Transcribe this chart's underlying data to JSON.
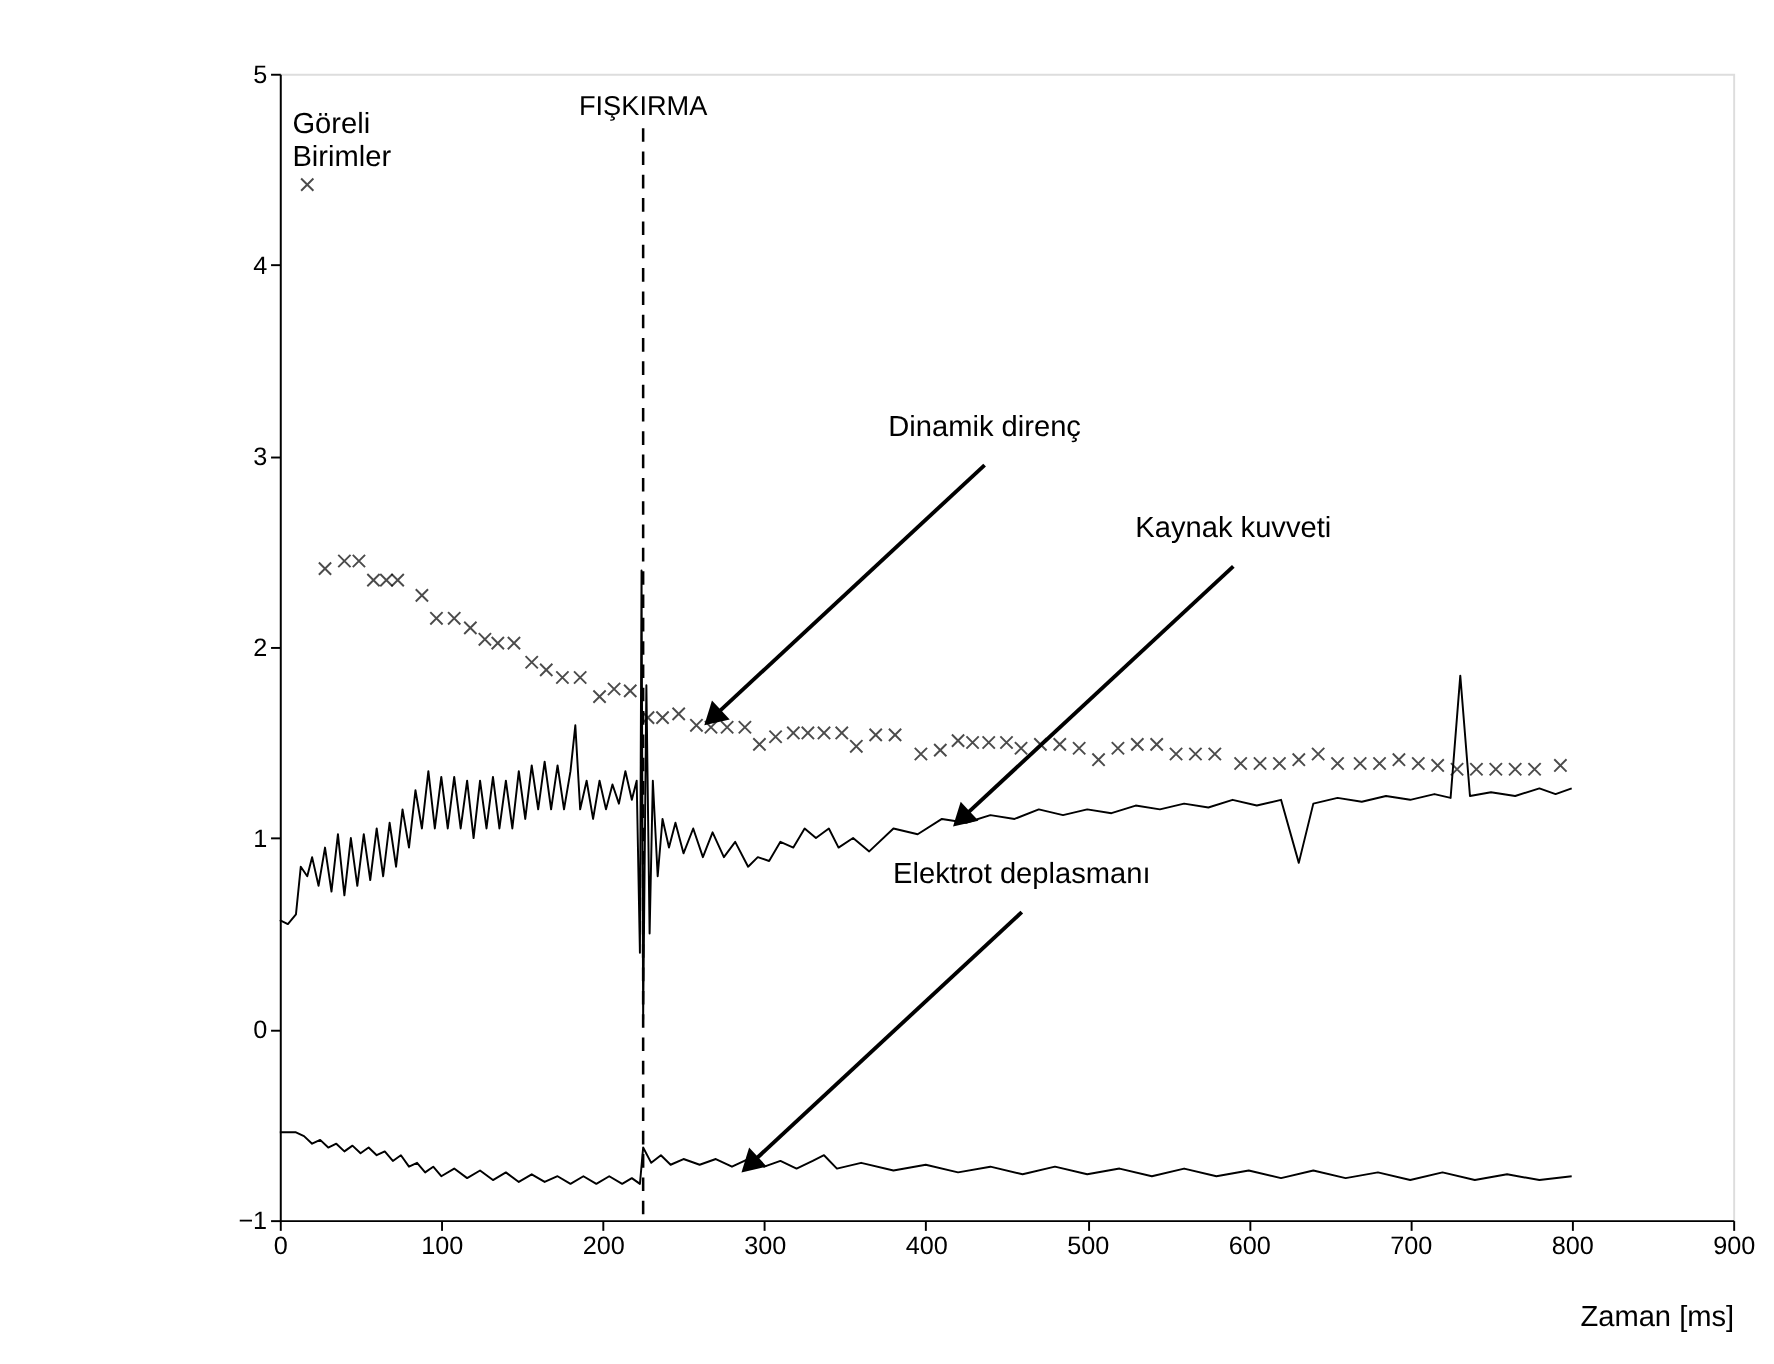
{
  "chart_data": {
    "type": "line",
    "xlabel": "Zaman [ms]",
    "ylabel": "Göreli Birimler",
    "xlim": [
      0,
      900
    ],
    "xticks": [
      0,
      100,
      200,
      300,
      400,
      500,
      600,
      700,
      800,
      900
    ],
    "ylim": [
      -1,
      5
    ],
    "yticks": [
      -1,
      0,
      1,
      2,
      3,
      4,
      5
    ],
    "grid": false,
    "ref_lines": [
      {
        "axis": "x",
        "value": 225,
        "label": "FIŞKIRMA",
        "line_style": "dashed",
        "color": "#000000"
      }
    ],
    "annotations": [
      {
        "text": "Dinamik direnç",
        "x": 268,
        "y": 1.63
      },
      {
        "text": "Kaynak kuvveti",
        "x": 422,
        "y": 1.1
      },
      {
        "text": "Elektrot deplasmanı",
        "x": 291,
        "y": -0.71
      }
    ],
    "series": [
      {
        "type": "scatter",
        "marker": "cross",
        "color": "#000000",
        "x": [
          17,
          28,
          40,
          49,
          58,
          66,
          73,
          88,
          97,
          108,
          118,
          127,
          135,
          145,
          156,
          165,
          175,
          186,
          198,
          207,
          217,
          228,
          237,
          247,
          258,
          267,
          277,
          288,
          297,
          307,
          318,
          327,
          337,
          348,
          357,
          369,
          381,
          397,
          409,
          420,
          429,
          439,
          450,
          459,
          471,
          483,
          495,
          507,
          519,
          531,
          543,
          555,
          567,
          579,
          595,
          607,
          619,
          631,
          643,
          655,
          669,
          681,
          693,
          705,
          717,
          729,
          741,
          753,
          765,
          777,
          793
        ],
        "values": [
          4.42,
          2.41,
          2.45,
          2.45,
          2.35,
          2.35,
          2.35,
          2.27,
          2.15,
          2.15,
          2.1,
          2.04,
          2.02,
          2.02,
          1.92,
          1.88,
          1.84,
          1.84,
          1.74,
          1.78,
          1.77,
          1.63,
          1.63,
          1.65,
          1.59,
          1.58,
          1.58,
          1.58,
          1.49,
          1.53,
          1.55,
          1.55,
          1.55,
          1.55,
          1.48,
          1.54,
          1.54,
          1.44,
          1.46,
          1.51,
          1.5,
          1.5,
          1.5,
          1.47,
          1.49,
          1.49,
          1.47,
          1.41,
          1.47,
          1.49,
          1.49,
          1.44,
          1.44,
          1.44,
          1.39,
          1.39,
          1.39,
          1.41,
          1.44,
          1.39,
          1.39,
          1.39,
          1.41,
          1.39,
          1.38,
          1.36,
          1.36,
          1.36,
          1.36,
          1.36,
          1.38
        ]
      },
      {
        "marker": "none",
        "line_style": "solid",
        "color": "#000000",
        "x": [
          0,
          5,
          10,
          13,
          17,
          20,
          24,
          28,
          32,
          36,
          40,
          44,
          48,
          52,
          56,
          60,
          64,
          68,
          72,
          76,
          80,
          84,
          88,
          92,
          96,
          100,
          104,
          108,
          112,
          116,
          120,
          124,
          128,
          132,
          136,
          140,
          144,
          148,
          152,
          156,
          160,
          164,
          168,
          172,
          176,
          180,
          183,
          186,
          190,
          194,
          198,
          202,
          206,
          210,
          214,
          218,
          221,
          223,
          224,
          225,
          227,
          229,
          231,
          234,
          237,
          241,
          245,
          250,
          256,
          262,
          268,
          275,
          282,
          290,
          296,
          303,
          310,
          318,
          325,
          332,
          340,
          346,
          355,
          365,
          380,
          395,
          410,
          425,
          440,
          455,
          470,
          485,
          500,
          515,
          530,
          545,
          560,
          575,
          590,
          605,
          620,
          631,
          640,
          655,
          670,
          685,
          700,
          715,
          725,
          731,
          737,
          750,
          765,
          780,
          790,
          800
        ],
        "values": [
          0.57,
          0.55,
          0.6,
          0.85,
          0.8,
          0.9,
          0.75,
          0.95,
          0.72,
          1.02,
          0.7,
          1.0,
          0.75,
          1.02,
          0.78,
          1.05,
          0.8,
          1.08,
          0.85,
          1.15,
          0.95,
          1.25,
          1.05,
          1.35,
          1.05,
          1.32,
          1.05,
          1.32,
          1.05,
          1.3,
          1.0,
          1.3,
          1.05,
          1.32,
          1.05,
          1.3,
          1.05,
          1.35,
          1.1,
          1.38,
          1.15,
          1.4,
          1.15,
          1.38,
          1.15,
          1.35,
          1.59,
          1.15,
          1.3,
          1.1,
          1.3,
          1.15,
          1.28,
          1.18,
          1.35,
          1.2,
          1.3,
          0.4,
          2.4,
          0.05,
          1.8,
          0.5,
          1.3,
          0.8,
          1.1,
          0.95,
          1.08,
          0.92,
          1.05,
          0.9,
          1.03,
          0.9,
          0.98,
          0.85,
          0.9,
          0.88,
          0.98,
          0.95,
          1.05,
          1.0,
          1.05,
          0.95,
          1.0,
          0.93,
          1.05,
          1.02,
          1.1,
          1.08,
          1.12,
          1.1,
          1.15,
          1.12,
          1.15,
          1.13,
          1.17,
          1.15,
          1.18,
          1.16,
          1.2,
          1.17,
          1.2,
          0.87,
          1.18,
          1.21,
          1.19,
          1.22,
          1.2,
          1.23,
          1.21,
          1.85,
          1.22,
          1.24,
          1.22,
          1.26,
          1.23,
          1.26
        ]
      },
      {
        "marker": "none",
        "line_style": "solid",
        "color": "#000000",
        "x": [
          0,
          10,
          15,
          20,
          25,
          30,
          35,
          40,
          45,
          50,
          55,
          60,
          65,
          70,
          75,
          80,
          85,
          90,
          95,
          100,
          108,
          116,
          124,
          132,
          140,
          148,
          156,
          164,
          172,
          180,
          188,
          196,
          204,
          212,
          218,
          223,
          225,
          230,
          236,
          242,
          250,
          260,
          270,
          280,
          290,
          300,
          310,
          320,
          330,
          337,
          345,
          360,
          380,
          400,
          420,
          440,
          460,
          480,
          500,
          520,
          540,
          560,
          580,
          600,
          620,
          640,
          660,
          680,
          700,
          720,
          740,
          760,
          780,
          800
        ],
        "values": [
          -0.54,
          -0.54,
          -0.56,
          -0.6,
          -0.58,
          -0.62,
          -0.6,
          -0.64,
          -0.61,
          -0.65,
          -0.62,
          -0.66,
          -0.64,
          -0.69,
          -0.66,
          -0.72,
          -0.7,
          -0.75,
          -0.72,
          -0.77,
          -0.73,
          -0.78,
          -0.74,
          -0.79,
          -0.75,
          -0.8,
          -0.76,
          -0.8,
          -0.77,
          -0.81,
          -0.77,
          -0.81,
          -0.77,
          -0.81,
          -0.78,
          -0.81,
          -0.62,
          -0.7,
          -0.66,
          -0.71,
          -0.68,
          -0.71,
          -0.68,
          -0.72,
          -0.68,
          -0.72,
          -0.69,
          -0.73,
          -0.69,
          -0.66,
          -0.73,
          -0.7,
          -0.74,
          -0.71,
          -0.75,
          -0.72,
          -0.76,
          -0.72,
          -0.76,
          -0.73,
          -0.77,
          -0.73,
          -0.77,
          -0.74,
          -0.78,
          -0.74,
          -0.78,
          -0.75,
          -0.79,
          -0.75,
          -0.79,
          -0.76,
          -0.79,
          -0.77
        ]
      }
    ]
  }
}
